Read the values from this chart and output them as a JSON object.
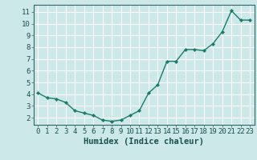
{
  "x": [
    0,
    1,
    2,
    3,
    4,
    5,
    6,
    7,
    8,
    9,
    10,
    11,
    12,
    13,
    14,
    15,
    16,
    17,
    18,
    19,
    20,
    21,
    22,
    23
  ],
  "y": [
    4.1,
    3.7,
    3.6,
    3.3,
    2.6,
    2.4,
    2.2,
    1.8,
    1.7,
    1.8,
    2.2,
    2.6,
    4.1,
    4.8,
    6.8,
    6.8,
    7.8,
    7.8,
    7.7,
    8.3,
    9.3,
    11.1,
    10.3,
    10.3
  ],
  "line_color": "#1a7a6a",
  "marker": "D",
  "marker_size": 2.2,
  "bg_color": "#cce8e8",
  "grid_color": "#ffffff",
  "xlabel": "Humidex (Indice chaleur)",
  "xlim": [
    -0.5,
    23.5
  ],
  "ylim": [
    1.4,
    11.6
  ],
  "yticks": [
    2,
    3,
    4,
    5,
    6,
    7,
    8,
    9,
    10,
    11
  ],
  "xticks": [
    0,
    1,
    2,
    3,
    4,
    5,
    6,
    7,
    8,
    9,
    10,
    11,
    12,
    13,
    14,
    15,
    16,
    17,
    18,
    19,
    20,
    21,
    22,
    23
  ],
  "xlabel_fontsize": 7.5,
  "tick_fontsize": 6.5,
  "line_width": 1.0,
  "axis_color": "#1a5050",
  "spine_color": "#336666"
}
